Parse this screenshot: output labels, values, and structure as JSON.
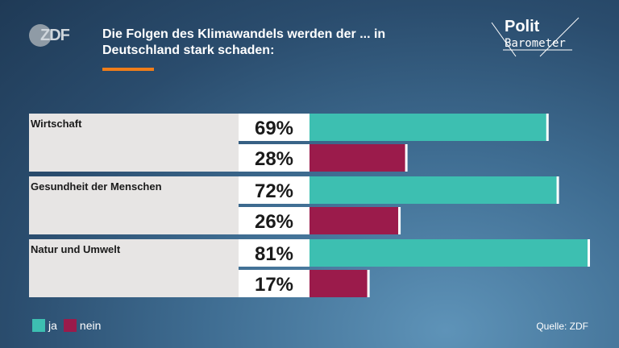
{
  "header": {
    "logo_text": "ZDF",
    "title": "Die Folgen des Klimawandels werden der ... in Deutschland stark schaden:",
    "brand_line1": "Polit",
    "brand_line2": "Barometer"
  },
  "colors": {
    "ja": "#3dbfb1",
    "nein": "#9b1b4b",
    "accent": "#ef7d1a",
    "label_bg": "#e7e5e4",
    "value_bg": "#ffffff"
  },
  "chart_data": {
    "type": "bar",
    "orientation": "horizontal",
    "categories": [
      "Wirtschaft",
      "Gesundheit der Menschen",
      "Natur und Umwelt"
    ],
    "series": [
      {
        "name": "ja",
        "values": [
          69,
          72,
          81
        ]
      },
      {
        "name": "nein",
        "values": [
          28,
          26,
          17
        ]
      }
    ],
    "value_labels": [
      [
        "69%",
        "28%"
      ],
      [
        "72%",
        "26%"
      ],
      [
        "81%",
        "17%"
      ]
    ],
    "xlim": [
      0,
      81
    ],
    "grid": false,
    "legend": "bottom-left"
  },
  "legend": {
    "ja_label": "ja",
    "nein_label": "nein"
  },
  "source": "Quelle: ZDF"
}
